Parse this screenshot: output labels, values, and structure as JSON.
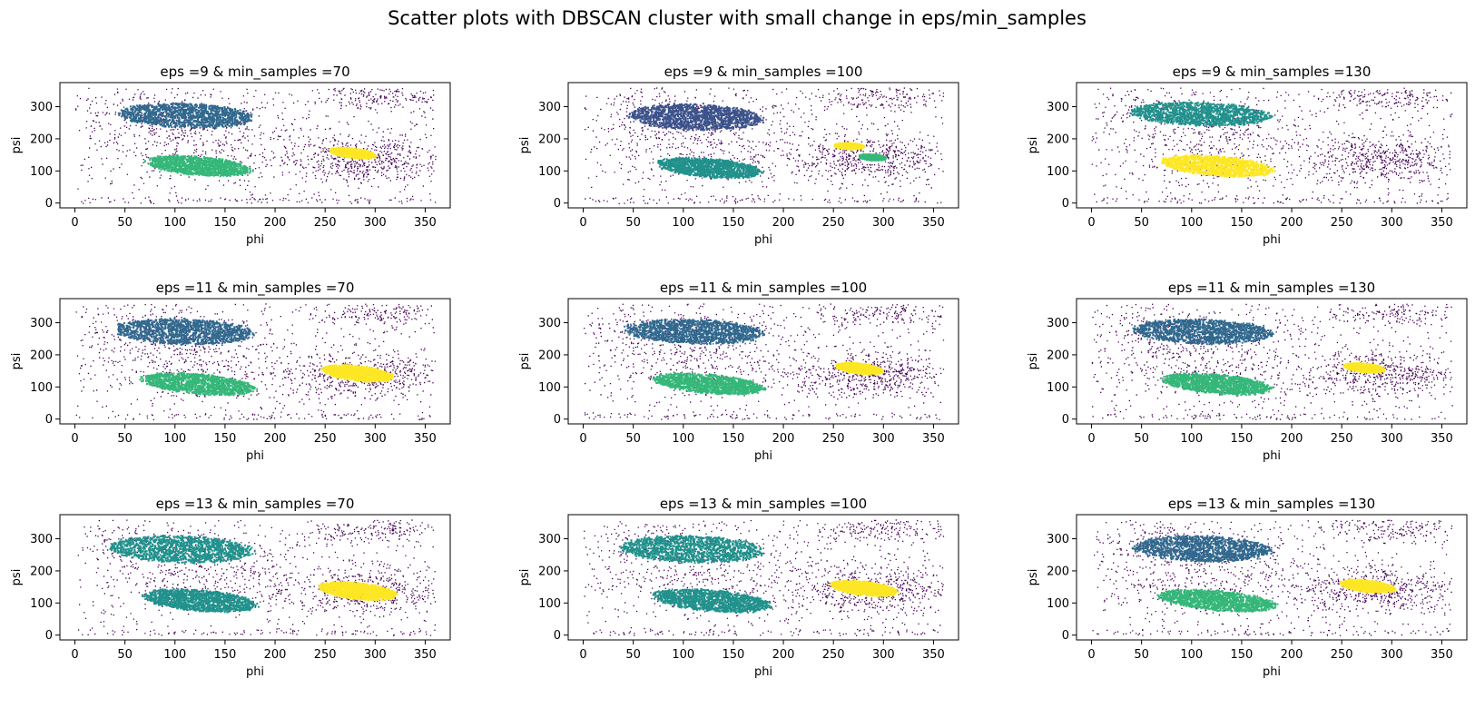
{
  "figure": {
    "title": "Scatter plots with DBSCAN cluster with small change in eps/min_samples"
  },
  "palette": {
    "noise": "#440154",
    "blue_dark": "#3b528b",
    "blue": "#31688e",
    "teal": "#21918c",
    "green": "#35b779",
    "yellow": "#fde725"
  },
  "axes_common": {
    "xlabel": "phi",
    "ylabel": "psi",
    "xlim": [
      -15,
      375
    ],
    "ylim": [
      -15,
      375
    ],
    "xticks": [
      0,
      50,
      100,
      150,
      200,
      250,
      300,
      350
    ],
    "yticks": [
      0,
      100,
      200,
      300
    ]
  },
  "chart_data": [
    {
      "type": "scatter",
      "title": "eps =9 & min_samples =70",
      "clusters": [
        {
          "color": "#31688e",
          "center": [
            110,
            275
          ],
          "radius": [
            68,
            38
          ],
          "tilt": -8
        },
        {
          "color": "#35b779",
          "center": [
            123,
            118
          ],
          "radius": [
            55,
            28
          ],
          "tilt": -20
        },
        {
          "color": "#fde725",
          "center": [
            277,
            158
          ],
          "radius": [
            25,
            14
          ],
          "tilt": -28
        }
      ]
    },
    {
      "type": "scatter",
      "title": "eps =9 & min_samples =100",
      "clusters": [
        {
          "color": "#3b528b",
          "center": [
            112,
            270
          ],
          "radius": [
            68,
            40
          ],
          "tilt": -8
        },
        {
          "color": "#21918c",
          "center": [
            125,
            112
          ],
          "radius": [
            55,
            28
          ],
          "tilt": -20
        },
        {
          "color": "#fde725",
          "center": [
            265,
            180
          ],
          "radius": [
            15,
            10
          ],
          "tilt": -10
        },
        {
          "color": "#35b779",
          "center": [
            288,
            145
          ],
          "radius": [
            14,
            9
          ],
          "tilt": -20
        }
      ]
    },
    {
      "type": "scatter",
      "title": "eps =9 & min_samples =130",
      "clusters": [
        {
          "color": "#21918c",
          "center": [
            108,
            280
          ],
          "radius": [
            72,
            36
          ],
          "tilt": -8
        },
        {
          "color": "#fde725",
          "center": [
            125,
            118
          ],
          "radius": [
            58,
            30
          ],
          "tilt": -18
        }
      ]
    },
    {
      "type": "scatter",
      "title": "eps =11 & min_samples =70",
      "clusters": [
        {
          "color": "#31688e",
          "center": [
            108,
            275
          ],
          "radius": [
            70,
            40
          ],
          "tilt": -8
        },
        {
          "color": "#35b779",
          "center": [
            122,
            112
          ],
          "radius": [
            60,
            30
          ],
          "tilt": -20
        },
        {
          "color": "#fde725",
          "center": [
            282,
            145
          ],
          "radius": [
            38,
            22
          ],
          "tilt": -28
        }
      ]
    },
    {
      "type": "scatter",
      "title": "eps =11 & min_samples =100",
      "clusters": [
        {
          "color": "#31688e",
          "center": [
            110,
            275
          ],
          "radius": [
            70,
            38
          ],
          "tilt": -8
        },
        {
          "color": "#35b779",
          "center": [
            125,
            112
          ],
          "radius": [
            58,
            29
          ],
          "tilt": -20
        },
        {
          "color": "#fde725",
          "center": [
            275,
            160
          ],
          "radius": [
            26,
            15
          ],
          "tilt": -28
        }
      ]
    },
    {
      "type": "scatter",
      "title": "eps =11 & min_samples =130",
      "clusters": [
        {
          "color": "#31688e",
          "center": [
            110,
            275
          ],
          "radius": [
            70,
            38
          ],
          "tilt": -8
        },
        {
          "color": "#35b779",
          "center": [
            125,
            112
          ],
          "radius": [
            58,
            29
          ],
          "tilt": -20
        },
        {
          "color": "#fde725",
          "center": [
            272,
            162
          ],
          "radius": [
            22,
            13
          ],
          "tilt": -25
        }
      ]
    },
    {
      "type": "scatter",
      "title": "eps =13 & min_samples =70",
      "clusters": [
        {
          "color": "#21918c",
          "center": [
            105,
            270
          ],
          "radius": [
            72,
            42
          ],
          "tilt": -8
        },
        {
          "color": "#21918c",
          "center": [
            125,
            110
          ],
          "radius": [
            60,
            32
          ],
          "tilt": -20
        },
        {
          "color": "#fde725",
          "center": [
            282,
            140
          ],
          "radius": [
            42,
            24
          ],
          "tilt": -28
        }
      ]
    },
    {
      "type": "scatter",
      "title": "eps =13 & min_samples =100",
      "clusters": [
        {
          "color": "#21918c",
          "center": [
            108,
            270
          ],
          "radius": [
            72,
            42
          ],
          "tilt": -8
        },
        {
          "color": "#21918c",
          "center": [
            128,
            110
          ],
          "radius": [
            62,
            32
          ],
          "tilt": -20
        },
        {
          "color": "#fde725",
          "center": [
            280,
            148
          ],
          "radius": [
            36,
            20
          ],
          "tilt": -28
        }
      ]
    },
    {
      "type": "scatter",
      "title": "eps =13 & min_samples =130",
      "clusters": [
        {
          "color": "#31688e",
          "center": [
            110,
            272
          ],
          "radius": [
            70,
            40
          ],
          "tilt": -8
        },
        {
          "color": "#35b779",
          "center": [
            125,
            110
          ],
          "radius": [
            62,
            30
          ],
          "tilt": -20
        },
        {
          "color": "#fde725",
          "center": [
            275,
            155
          ],
          "radius": [
            30,
            17
          ],
          "tilt": -28
        }
      ]
    }
  ]
}
